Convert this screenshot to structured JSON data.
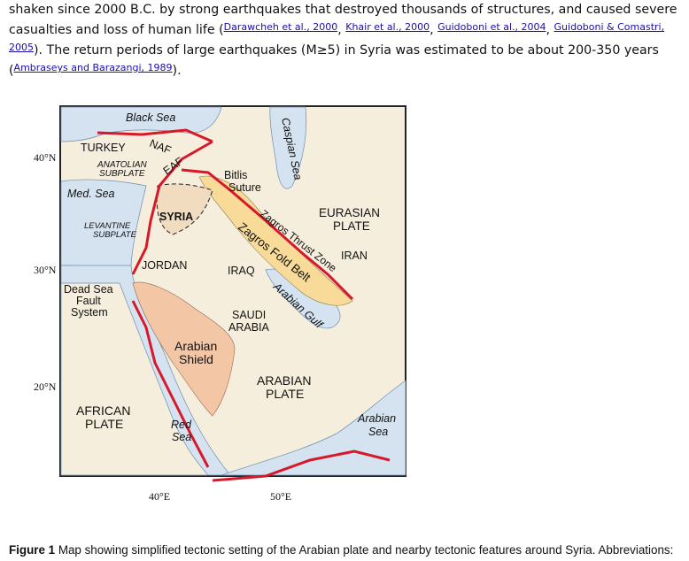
{
  "paragraph": {
    "line1": "shaken since 2000 B.C. by strong earthquakes that destroyed thousands of structures, and caused severe",
    "line2_start": "casualties and loss of human life (",
    "refs": [
      "Darawcheh et al., 2000",
      "Khair et al., 2000",
      "Guidoboni et al., 2004",
      "Guidoboni & Comastri, 2005"
    ],
    "line3_rest": "). The return periods of large earthquakes (M≥5) in Syria was estimated to be about 200-350 years",
    "ref_last": "Ambraseys and Barazangi, 1989",
    "end": ")."
  },
  "figure": {
    "labels": {
      "black_sea": "Black Sea",
      "naf": "NAF",
      "turkey": "TURKEY",
      "anatolian1": "ANATOLIAN",
      "anatolian2": "SUBPLATE",
      "eaf": "EAF",
      "med_sea": "Med. Sea",
      "bitlis1": "Bitlis",
      "bitlis2": "Suture",
      "caspian": "Caspian Sea",
      "eurasian1": "EURASIAN",
      "eurasian2": "PLATE",
      "syria": "SYRIA",
      "levantine1": "LEVANTINE",
      "levantine2": "SUBPLATE",
      "zagros_thrust": "Zagros Thrust Zone",
      "zagros_fold": "Zagros Fold Belt",
      "iran": "IRAN",
      "jordan": "JORDAN",
      "iraq": "IRAQ",
      "dsf1": "Dead Sea",
      "dsf2": "Fault",
      "dsf3": "System",
      "gulf": "Arabian Gulf",
      "saudi1": "SAUDI",
      "saudi2": "ARABIA",
      "shield1": "Arabian",
      "shield2": "Shield",
      "arabian1": "ARABIAN",
      "arabian2": "PLATE",
      "african1": "AFRICAN",
      "african2": "PLATE",
      "arsea1": "Arabian",
      "arsea2": "Sea",
      "redsea1": "Red",
      "redsea2": "Sea"
    },
    "lat_ticks": [
      "40°N",
      "30°N",
      "20°N"
    ],
    "lon_ticks": [
      "40°E",
      "50°E"
    ],
    "colors": {
      "land": "#f6eedc",
      "sea": "#d5e3f1",
      "shield": "#f3c6a6",
      "fold_belt": "#f8db98",
      "fault": "#d7182a"
    }
  },
  "caption": {
    "label": "Figure 1",
    "text": " Map showing simplified tectonic setting of the Arabian plate and nearby tectonic features around Syria. Abbreviations:"
  }
}
